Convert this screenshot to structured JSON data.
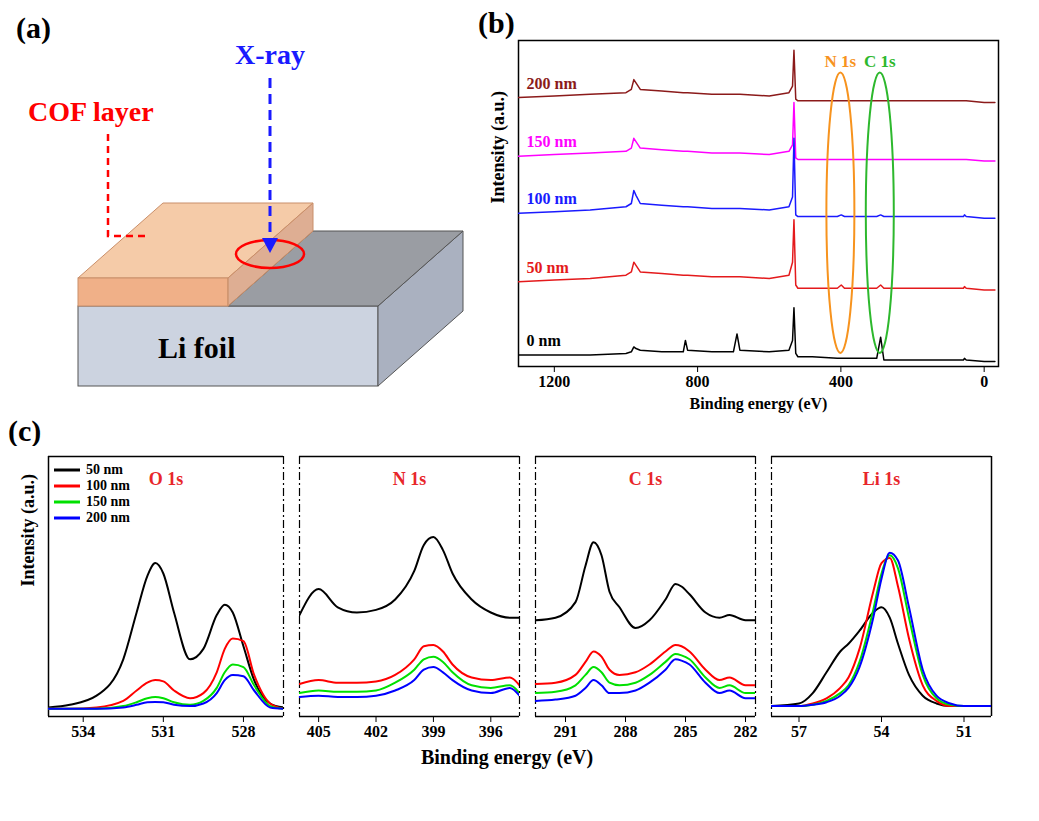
{
  "diagram": {
    "panel_label": "(a)",
    "labels": {
      "cof": "COF layer",
      "xray": "X-ray",
      "li": "Li foil"
    }
  },
  "chart_data": [
    {
      "panel_label": "(b)",
      "type": "line",
      "xlabel": "Binding energy (eV)",
      "ylabel": "Intensity (a.u.)",
      "xlim": [
        1300,
        -40
      ],
      "xticks": [
        1200,
        800,
        400,
        0
      ],
      "ylim": [
        0,
        100
      ],
      "tick_labels": "x",
      "x": [
        1300,
        1200,
        1100,
        1000,
        985,
        978,
        972,
        960,
        900,
        840,
        834,
        828,
        760,
        700,
        690,
        682,
        600,
        545,
        535,
        531,
        526,
        520,
        480,
        410,
        399,
        390,
        300,
        289,
        280,
        200,
        100,
        58,
        55,
        50,
        0,
        -30
      ],
      "series": [
        {
          "name": "200 nm",
          "color": "#8b1a1a",
          "values": [
            82.5,
            83,
            83.5,
            84,
            85,
            88,
            87,
            85,
            84.5,
            84,
            84,
            84,
            83.5,
            83.5,
            83.5,
            83.5,
            83,
            84,
            86,
            97,
            82,
            81.5,
            81.5,
            81.5,
            81.5,
            81.5,
            81.5,
            81.5,
            81.5,
            81.5,
            81.5,
            81.5,
            81.5,
            81.5,
            81,
            81
          ]
        },
        {
          "name": "150 nm",
          "color": "#ff00ff",
          "values": [
            64.5,
            65,
            65.5,
            66,
            67,
            70,
            69,
            67,
            66.5,
            66,
            66,
            66,
            65.5,
            65.5,
            65.5,
            65.5,
            65,
            66,
            68,
            81,
            64,
            63.5,
            63.5,
            63.5,
            63.5,
            63.5,
            63.5,
            63.5,
            63.5,
            63.5,
            63.5,
            63.5,
            63.5,
            63.5,
            63,
            63
          ]
        },
        {
          "name": "100 nm",
          "color": "#1a1aff",
          "values": [
            47,
            47.5,
            48,
            49,
            50,
            54,
            52.5,
            50,
            49.5,
            49,
            49,
            49,
            48.5,
            48.5,
            48.5,
            48.5,
            48,
            49,
            52,
            70,
            46.5,
            46,
            46,
            46,
            46.5,
            46,
            46,
            46.5,
            46,
            46,
            46,
            46,
            46.5,
            46,
            45.5,
            45.5
          ]
        },
        {
          "name": "50 nm",
          "color": "#e41a1c",
          "values": [
            26,
            26.5,
            27,
            28,
            29,
            32,
            31,
            29,
            28.5,
            28,
            28,
            28,
            27.5,
            27.5,
            27.5,
            27.5,
            27,
            28,
            32,
            45,
            25,
            24,
            24,
            24,
            25,
            24,
            24,
            25,
            24,
            24,
            24,
            24,
            24.5,
            24,
            23.5,
            23.5
          ]
        },
        {
          "name": "0 nm",
          "color": "#000000",
          "values": [
            3.5,
            3.5,
            3.5,
            4,
            4.5,
            6,
            5.5,
            5,
            4.5,
            4.5,
            8,
            5,
            4.5,
            4.5,
            10,
            5,
            4.5,
            5,
            8,
            18,
            4,
            3,
            3,
            2.5,
            2.5,
            2.5,
            2.5,
            9,
            2,
            2,
            2,
            2,
            2.5,
            2,
            1.5,
            1.5
          ]
        }
      ],
      "annotations": [
        {
          "text": "N 1s",
          "x": 400,
          "color": "#f7931e"
        },
        {
          "text": "C 1s",
          "x": 290,
          "color": "#2db82d"
        }
      ]
    },
    {
      "panel_label": "(c)",
      "type": "line",
      "xlabel": "Binding energy (eV)",
      "ylabel": "Intensity (a.u.)",
      "ylim": [
        0,
        100
      ],
      "tick_labels": "x",
      "legend": "top-left",
      "series": [
        {
          "name": "50 nm",
          "color": "#000000"
        },
        {
          "name": "100 nm",
          "color": "#ff0000"
        },
        {
          "name": "150 nm",
          "color": "#00e000"
        },
        {
          "name": "200 nm",
          "color": "#0000ff"
        }
      ],
      "panels": [
        {
          "title": "O 1s",
          "xlim": [
            535.3,
            526.5
          ],
          "xticks": [
            534,
            531,
            528
          ],
          "x": [
            535.3,
            534.5,
            533.5,
            532.5,
            532,
            531.6,
            531.3,
            531,
            530.6,
            530,
            529.5,
            529,
            528.7,
            528.4,
            528,
            527.6,
            527,
            526.5
          ],
          "values": [
            [
              3.5,
              4.5,
              8,
              22,
              40,
              54,
              59,
              55,
              40,
              22,
              26,
              39,
              43,
              40,
              27,
              14,
              5,
              3.5
            ],
            [
              3,
              3,
              3.5,
              6,
              10,
              13,
              14,
              13.5,
              10,
              7,
              9,
              17,
              26,
              30,
              29,
              16,
              5,
              3
            ],
            [
              3,
              3,
              3,
              4,
              5.5,
              7,
              7.5,
              7,
              5.5,
              4.5,
              6,
              11,
              17,
              20,
              19,
              12,
              4,
              3
            ],
            [
              3,
              3,
              3,
              3.5,
              4.5,
              5.5,
              5.6,
              5.5,
              4.5,
              4,
              5,
              9,
              14,
              16,
              15.5,
              10,
              3.5,
              3
            ]
          ]
        },
        {
          "title": "N 1s",
          "xlim": [
            406,
            394.5
          ],
          "xticks": [
            405,
            402,
            399,
            396
          ],
          "x": [
            406,
            405,
            404,
            403,
            402,
            401,
            400,
            399.5,
            399,
            398.5,
            398,
            397,
            396,
            395,
            394.5
          ],
          "values": [
            [
              39,
              49,
              42,
              40,
              41,
              45,
              56,
              66,
              69,
              64,
              55,
              45,
              40,
              38,
              38
            ],
            [
              12.5,
              14,
              13,
              13,
              13.5,
              16,
              22,
              27,
              27.5,
              25,
              20,
              15,
              14,
              15,
              12
            ],
            [
              9,
              10,
              9.5,
              9.5,
              10,
              13,
              18,
              22,
              23,
              21,
              17,
              12,
              11,
              12,
              9
            ],
            [
              7.5,
              8,
              7.5,
              7.5,
              8,
              10,
              14,
              18,
              19,
              17,
              14,
              10,
              9,
              11,
              8
            ]
          ]
        },
        {
          "title": "C 1s",
          "xlim": [
            292.5,
            281.5
          ],
          "xticks": [
            291,
            288,
            285,
            282
          ],
          "x": [
            292.5,
            291.5,
            290.5,
            290,
            289.6,
            289.2,
            288.8,
            288.3,
            287.5,
            286.8,
            286,
            285.5,
            285.2,
            284.8,
            284,
            283.3,
            282.8,
            282,
            281.5
          ],
          "values": [
            [
              37,
              38,
              44,
              58,
              67,
              62,
              48,
              42,
              34,
              37,
              45,
              51,
              50,
              47,
              40,
              38,
              39,
              37,
              37
            ],
            [
              12.5,
              13,
              16,
              21,
              25,
              23,
              18,
              16,
              17,
              20,
              25,
              27.5,
              27,
              25,
              18,
              14,
              15,
              12,
              12
            ],
            [
              9,
              9.5,
              12,
              16,
              19,
              17,
              13,
              12,
              13,
              16,
              21,
              24,
              23.5,
              22,
              15,
              11,
              12,
              9,
              9
            ],
            [
              6,
              6.5,
              8,
              11,
              14,
              12,
              9,
              9,
              10,
              13,
              18,
              22,
              21.5,
              20,
              13,
              9,
              10,
              7,
              7
            ]
          ]
        },
        {
          "title": "Li 1s",
          "xlim": [
            58,
            50
          ],
          "xticks": [
            57,
            54,
            51
          ],
          "x": [
            58,
            57,
            56.5,
            56,
            55.5,
            55.2,
            54.8,
            54.3,
            54,
            53.7,
            53.4,
            53,
            52.5,
            52,
            51.5,
            51,
            50
          ],
          "values": [
            [
              4,
              5,
              9,
              17,
              25,
              28,
              33,
              40,
              42,
              38,
              28,
              16,
              8,
              5,
              4,
              4,
              4
            ],
            [
              4,
              4,
              5,
              7,
              11,
              15,
              26,
              48,
              59,
              61,
              50,
              30,
              12,
              6,
              4,
              4,
              4
            ],
            [
              4,
              4,
              4.5,
              6,
              9,
              12,
              21,
              41,
              55,
              62,
              57,
              38,
              16,
              7,
              4.5,
              4,
              4
            ],
            [
              4,
              4,
              4.5,
              5.5,
              8,
              11,
              19,
              38,
              53,
              63,
              60,
              42,
              18,
              8,
              5,
              4,
              4
            ]
          ]
        }
      ]
    }
  ]
}
